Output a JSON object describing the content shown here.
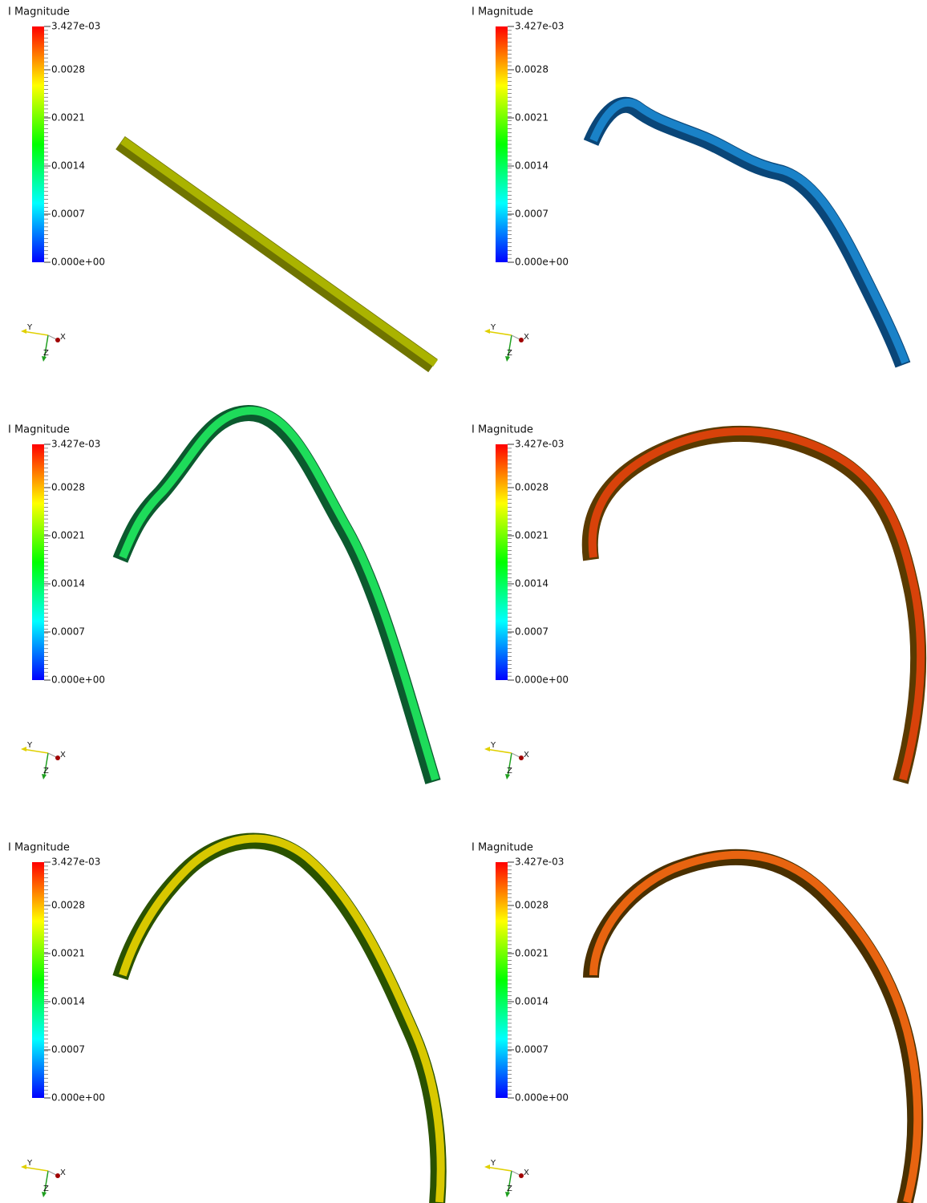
{
  "panels": [
    {
      "legend": {
        "title": "I Magnitude",
        "ticks": [
          "3.427e-03",
          "0.0028",
          "0.0021",
          "0.0014",
          "0.0007",
          "0.000e+00"
        ]
      },
      "axes": {
        "y": "Y",
        "x": "X",
        "z": "Z"
      }
    },
    {
      "legend": {
        "title": "I Magnitude",
        "ticks": [
          "3.427e-03",
          "0.0028",
          "0.0021",
          "0.0014",
          "0.0007",
          "0.000e+00"
        ]
      },
      "axes": {
        "y": "Y",
        "x": "X",
        "z": "Z"
      }
    },
    {
      "legend": {
        "title": "I Magnitude",
        "ticks": [
          "3.427e-03",
          "0.0028",
          "0.0021",
          "0.0014",
          "0.0007",
          "0.000e+00"
        ]
      },
      "axes": {
        "y": "Y",
        "x": "X",
        "z": "Z"
      }
    },
    {
      "legend": {
        "title": "I Magnitude",
        "ticks": [
          "3.427e-03",
          "0.0028",
          "0.0021",
          "0.0014",
          "0.0007",
          "0.000e+00"
        ]
      },
      "axes": {
        "y": "Y",
        "x": "X",
        "z": "Z"
      }
    },
    {
      "legend": {
        "title": "I Magnitude",
        "ticks": [
          "3.427e-03",
          "0.0028",
          "0.0021",
          "0.0014",
          "0.0007",
          "0.000e+00"
        ]
      },
      "axes": {
        "y": "Y",
        "x": "X",
        "z": "Z"
      }
    },
    {
      "legend": {
        "title": "I Magnitude",
        "ticks": [
          "3.427e-03",
          "0.0028",
          "0.0021",
          "0.0014",
          "0.0007",
          "0.000e+00"
        ]
      },
      "axes": {
        "y": "Y",
        "x": "X",
        "z": "Z"
      }
    }
  ]
}
